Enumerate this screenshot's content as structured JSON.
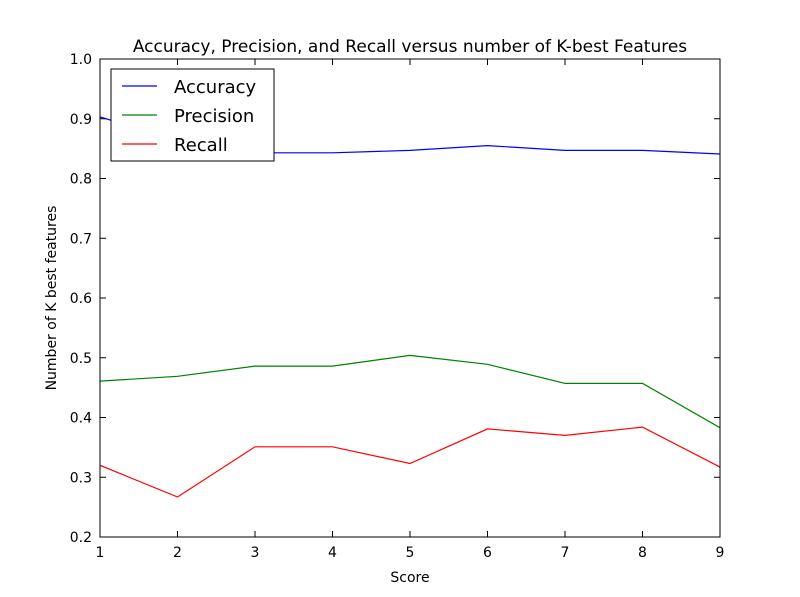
{
  "chart_data": {
    "type": "line",
    "title": "Accuracy, Precision, and Recall versus number of K-best Features",
    "xlabel": "Score",
    "ylabel": "Number of K best features",
    "xlim": [
      1,
      9
    ],
    "ylim": [
      0.2,
      1.0
    ],
    "x": [
      1,
      2,
      3,
      4,
      5,
      6,
      7,
      8,
      9
    ],
    "x_ticks": [
      "1",
      "2",
      "3",
      "4",
      "5",
      "6",
      "7",
      "8",
      "9"
    ],
    "y_ticks": [
      "0.2",
      "0.3",
      "0.4",
      "0.5",
      "0.6",
      "0.7",
      "0.8",
      "0.9",
      "1.0"
    ],
    "grid": false,
    "legend_position": "top-left",
    "series": [
      {
        "name": "Accuracy",
        "color": "#0000ff",
        "values": [
          0.903,
          0.865,
          0.843,
          0.843,
          0.847,
          0.855,
          0.847,
          0.847,
          0.841
        ]
      },
      {
        "name": "Precision",
        "color": "#008000",
        "values": [
          0.461,
          0.469,
          0.486,
          0.486,
          0.504,
          0.489,
          0.457,
          0.457,
          0.383
        ]
      },
      {
        "name": "Recall",
        "color": "#ff0000",
        "values": [
          0.32,
          0.267,
          0.351,
          0.351,
          0.323,
          0.381,
          0.37,
          0.384,
          0.317
        ]
      }
    ]
  }
}
